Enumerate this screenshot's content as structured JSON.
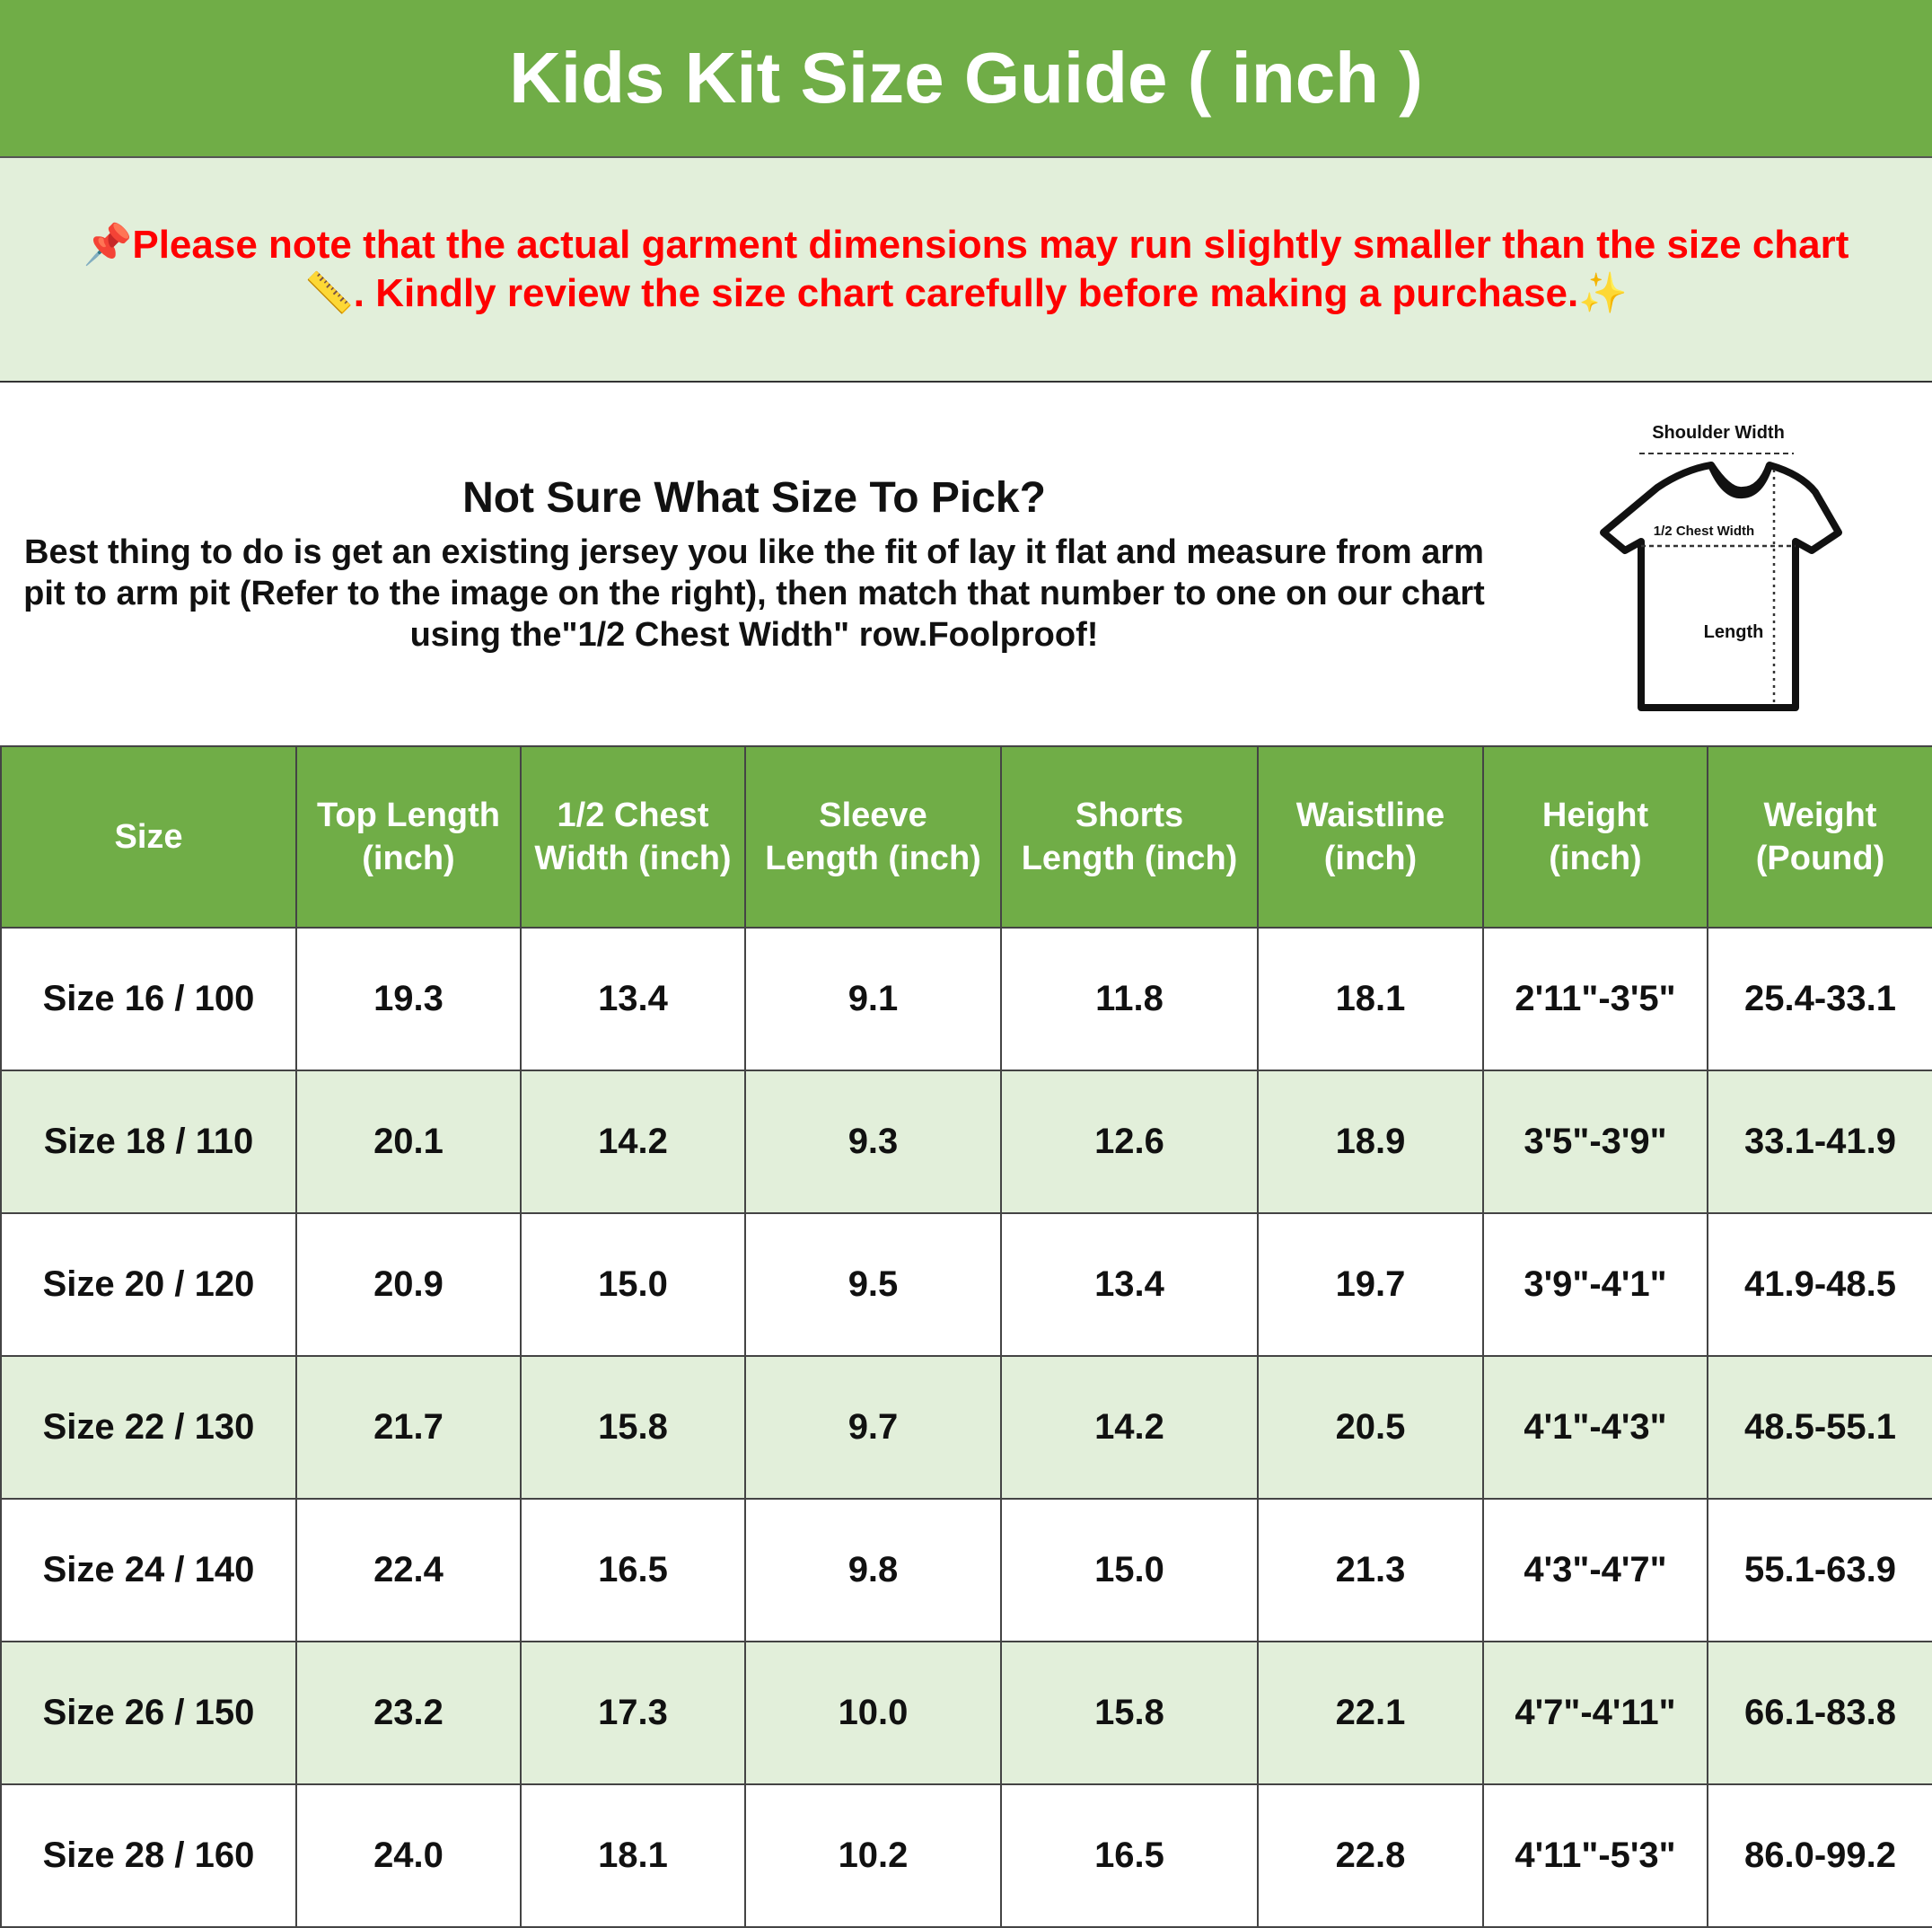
{
  "title": "Kids Kit Size Guide ( inch )",
  "notice": {
    "line1": "Please note that the actual garment dimensions may run slightly smaller than the size chart",
    "line2": ". Kindly review the size chart carefully before making a purchase.",
    "icons": [
      "pushpin-icon",
      "ruler-icon",
      "sparkles-icon"
    ],
    "color": "#ff0000"
  },
  "info": {
    "heading": "Not Sure What Size To Pick?",
    "body": [
      "Best thing to do is get an existing jersey you like the fit of lay it flat and measure from arm",
      "pit to arm pit (Refer to the image on the right), then match that number to one on our chart",
      "using the\"1/2 Chest Width\" row.Foolproof!"
    ],
    "diagram": {
      "shoulder": "Shoulder Width",
      "chest": "1/2 Chest Width",
      "length": "Length"
    }
  },
  "colors": {
    "header": "#70ad47",
    "alt_row": "#e2efda"
  },
  "table": {
    "headers": [
      [
        "Size"
      ],
      [
        "Top Length",
        "(inch)"
      ],
      [
        "1/2 Chest",
        "Width (inch)"
      ],
      [
        "Sleeve",
        "Length (inch)"
      ],
      [
        "Shorts",
        "Length (inch)"
      ],
      [
        "Waistline",
        "(inch)"
      ],
      [
        "Height",
        "(inch)"
      ],
      [
        "Weight",
        "(Pound)"
      ]
    ],
    "rows": [
      [
        "Size 16 / 100",
        "19.3",
        "13.4",
        "9.1",
        "11.8",
        "18.1",
        "2'11\"-3'5\"",
        "25.4-33.1"
      ],
      [
        "Size 18 / 110",
        "20.1",
        "14.2",
        "9.3",
        "12.6",
        "18.9",
        "3'5\"-3'9\"",
        "33.1-41.9"
      ],
      [
        "Size 20 / 120",
        "20.9",
        "15.0",
        "9.5",
        "13.4",
        "19.7",
        "3'9\"-4'1\"",
        "41.9-48.5"
      ],
      [
        "Size 22 / 130",
        "21.7",
        "15.8",
        "9.7",
        "14.2",
        "20.5",
        "4'1\"-4'3\"",
        "48.5-55.1"
      ],
      [
        "Size 24 / 140",
        "22.4",
        "16.5",
        "9.8",
        "15.0",
        "21.3",
        "4'3\"-4'7\"",
        "55.1-63.9"
      ],
      [
        "Size 26 / 150",
        "23.2",
        "17.3",
        "10.0",
        "15.8",
        "22.1",
        "4'7\"-4'11\"",
        "66.1-83.8"
      ],
      [
        "Size 28 / 160",
        "24.0",
        "18.1",
        "10.2",
        "16.5",
        "22.8",
        "4'11\"-5'3\"",
        "86.0-99.2"
      ]
    ]
  }
}
